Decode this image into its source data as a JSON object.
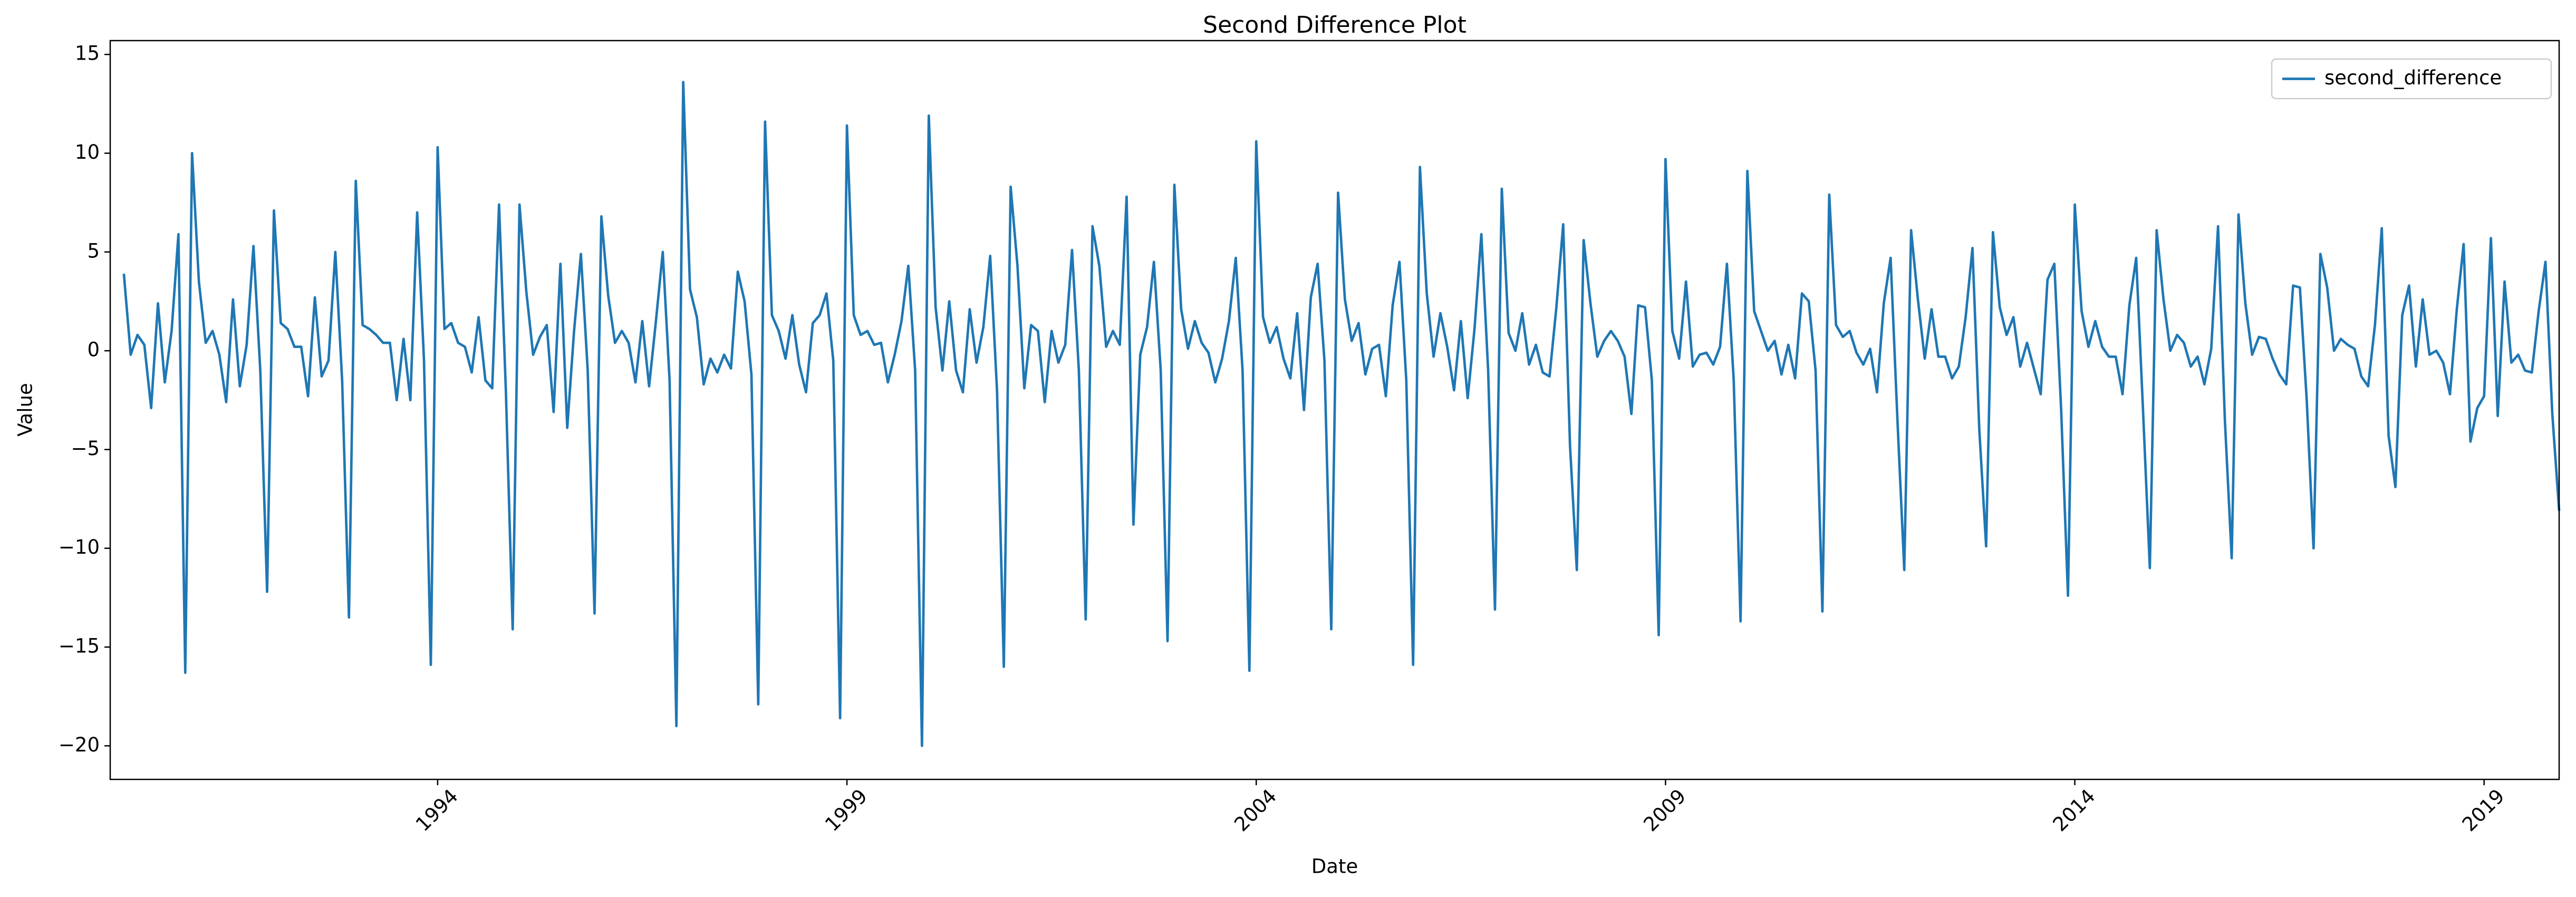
{
  "chart_data": {
    "type": "line",
    "title": "Second Difference Plot",
    "x_label": "Date",
    "y_label": "Value",
    "legend_position": "upper right",
    "grid": false,
    "xlim": [
      "1990-01",
      "2019-12"
    ],
    "xticks": [
      {
        "value": "1994-01",
        "label": "1994"
      },
      {
        "value": "1999-01",
        "label": "1999"
      },
      {
        "value": "2004-01",
        "label": "2004"
      },
      {
        "value": "2009-01",
        "label": "2009"
      },
      {
        "value": "2014-01",
        "label": "2014"
      },
      {
        "value": "2019-01",
        "label": "2019"
      }
    ],
    "ylim": [
      -21.7,
      15.7
    ],
    "yticks": [
      {
        "value": -20,
        "label": "−20"
      },
      {
        "value": -15,
        "label": "−15"
      },
      {
        "value": -10,
        "label": "−10"
      },
      {
        "value": -5,
        "label": "−5"
      },
      0,
      5,
      10,
      15
    ],
    "x": [
      "1990-01",
      "1990-02",
      "1990-03",
      "1990-04",
      "1990-05",
      "1990-06",
      "1990-07",
      "1990-08",
      "1990-09",
      "1990-10",
      "1990-11",
      "1990-12",
      "1991-01",
      "1991-02",
      "1991-03",
      "1991-04",
      "1991-05",
      "1991-06",
      "1991-07",
      "1991-08",
      "1991-09",
      "1991-10",
      "1991-11",
      "1991-12",
      "1992-01",
      "1992-02",
      "1992-03",
      "1992-04",
      "1992-05",
      "1992-06",
      "1992-07",
      "1992-08",
      "1992-09",
      "1992-10",
      "1992-11",
      "1992-12",
      "1993-01",
      "1993-02",
      "1993-03",
      "1993-04",
      "1993-05",
      "1993-06",
      "1993-07",
      "1993-08",
      "1993-09",
      "1993-10",
      "1993-11",
      "1993-12",
      "1994-01",
      "1994-02",
      "1994-03",
      "1994-04",
      "1994-05",
      "1994-06",
      "1994-07",
      "1994-08",
      "1994-09",
      "1994-10",
      "1994-11",
      "1994-12",
      "1995-01",
      "1995-02",
      "1995-03",
      "1995-04",
      "1995-05",
      "1995-06",
      "1995-07",
      "1995-08",
      "1995-09",
      "1995-10",
      "1995-11",
      "1995-12",
      "1996-01",
      "1996-02",
      "1996-03",
      "1996-04",
      "1996-05",
      "1996-06",
      "1996-07",
      "1996-08",
      "1996-09",
      "1996-10",
      "1996-11",
      "1996-12",
      "1997-01",
      "1997-02",
      "1997-03",
      "1997-04",
      "1997-05",
      "1997-06",
      "1997-07",
      "1997-08",
      "1997-09",
      "1997-10",
      "1997-11",
      "1997-12",
      "1998-01",
      "1998-02",
      "1998-03",
      "1998-04",
      "1998-05",
      "1998-06",
      "1998-07",
      "1998-08",
      "1998-09",
      "1998-10",
      "1998-11",
      "1998-12",
      "1999-01",
      "1999-02",
      "1999-03",
      "1999-04",
      "1999-05",
      "1999-06",
      "1999-07",
      "1999-08",
      "1999-09",
      "1999-10",
      "1999-11",
      "1999-12",
      "2000-01",
      "2000-02",
      "2000-03",
      "2000-04",
      "2000-05",
      "2000-06",
      "2000-07",
      "2000-08",
      "2000-09",
      "2000-10",
      "2000-11",
      "2000-12",
      "2001-01",
      "2001-02",
      "2001-03",
      "2001-04",
      "2001-05",
      "2001-06",
      "2001-07",
      "2001-08",
      "2001-09",
      "2001-10",
      "2001-11",
      "2001-12",
      "2002-01",
      "2002-02",
      "2002-03",
      "2002-04",
      "2002-05",
      "2002-06",
      "2002-07",
      "2002-08",
      "2002-09",
      "2002-10",
      "2002-11",
      "2002-12",
      "2003-01",
      "2003-02",
      "2003-03",
      "2003-04",
      "2003-05",
      "2003-06",
      "2003-07",
      "2003-08",
      "2003-09",
      "2003-10",
      "2003-11",
      "2003-12",
      "2004-01",
      "2004-02",
      "2004-03",
      "2004-04",
      "2004-05",
      "2004-06",
      "2004-07",
      "2004-08",
      "2004-09",
      "2004-10",
      "2004-11",
      "2004-12",
      "2005-01",
      "2005-02",
      "2005-03",
      "2005-04",
      "2005-05",
      "2005-06",
      "2005-07",
      "2005-08",
      "2005-09",
      "2005-10",
      "2005-11",
      "2005-12",
      "2006-01",
      "2006-02",
      "2006-03",
      "2006-04",
      "2006-05",
      "2006-06",
      "2006-07",
      "2006-08",
      "2006-09",
      "2006-10",
      "2006-11",
      "2006-12",
      "2007-01",
      "2007-02",
      "2007-03",
      "2007-04",
      "2007-05",
      "2007-06",
      "2007-07",
      "2007-08",
      "2007-09",
      "2007-10",
      "2007-11",
      "2007-12",
      "2008-01",
      "2008-02",
      "2008-03",
      "2008-04",
      "2008-05",
      "2008-06",
      "2008-07",
      "2008-08",
      "2008-09",
      "2008-10",
      "2008-11",
      "2008-12",
      "2009-01",
      "2009-02",
      "2009-03",
      "2009-04",
      "2009-05",
      "2009-06",
      "2009-07",
      "2009-08",
      "2009-09",
      "2009-10",
      "2009-11",
      "2009-12",
      "2010-01",
      "2010-02",
      "2010-03",
      "2010-04",
      "2010-05",
      "2010-06",
      "2010-07",
      "2010-08",
      "2010-09",
      "2010-10",
      "2010-11",
      "2010-12",
      "2011-01",
      "2011-02",
      "2011-03",
      "2011-04",
      "2011-05",
      "2011-06",
      "2011-07",
      "2011-08",
      "2011-09",
      "2011-10",
      "2011-11",
      "2011-12",
      "2012-01",
      "2012-02",
      "2012-03",
      "2012-04",
      "2012-05",
      "2012-06",
      "2012-07",
      "2012-08",
      "2012-09",
      "2012-10",
      "2012-11",
      "2012-12",
      "2013-01",
      "2013-02",
      "2013-03",
      "2013-04",
      "2013-05",
      "2013-06",
      "2013-07",
      "2013-08",
      "2013-09",
      "2013-10",
      "2013-11",
      "2013-12",
      "2014-01",
      "2014-02",
      "2014-03",
      "2014-04",
      "2014-05",
      "2014-06",
      "2014-07",
      "2014-08",
      "2014-09",
      "2014-10",
      "2014-11",
      "2014-12",
      "2015-01",
      "2015-02",
      "2015-03",
      "2015-04",
      "2015-05",
      "2015-06",
      "2015-07",
      "2015-08",
      "2015-09",
      "2015-10",
      "2015-11",
      "2015-12",
      "2016-01",
      "2016-02",
      "2016-03",
      "2016-04",
      "2016-05",
      "2016-06",
      "2016-07",
      "2016-08",
      "2016-09",
      "2016-10",
      "2016-11",
      "2016-12",
      "2017-01",
      "2017-02",
      "2017-03",
      "2017-04",
      "2017-05",
      "2017-06",
      "2017-07",
      "2017-08",
      "2017-09",
      "2017-10",
      "2017-11",
      "2017-12",
      "2018-01",
      "2018-02",
      "2018-03",
      "2018-04",
      "2018-05",
      "2018-06",
      "2018-07",
      "2018-08",
      "2018-09",
      "2018-10",
      "2018-11",
      "2018-12",
      "2019-01",
      "2019-02",
      "2019-03",
      "2019-04",
      "2019-05",
      "2019-06",
      "2019-07",
      "2019-08",
      "2019-09",
      "2019-10",
      "2019-11",
      "2019-12"
    ],
    "series": [
      {
        "name": "second_difference",
        "color": "#1f77b4",
        "values": [
          null,
          null,
          3.9,
          -0.2,
          0.8,
          0.3,
          -2.9,
          2.4,
          -1.6,
          1.0,
          5.9,
          -16.3,
          10.0,
          3.5,
          0.4,
          1.0,
          -0.2,
          -2.6,
          2.6,
          -1.8,
          0.3,
          5.3,
          -1.0,
          -12.2,
          7.1,
          1.4,
          1.1,
          0.2,
          0.2,
          -2.3,
          2.7,
          -1.3,
          -0.5,
          5.0,
          -1.5,
          -13.5,
          8.6,
          1.3,
          1.1,
          0.8,
          0.4,
          0.4,
          -2.5,
          0.6,
          -2.5,
          7.0,
          -0.5,
          -15.9,
          10.3,
          1.1,
          1.4,
          0.4,
          0.2,
          -1.1,
          1.7,
          -1.5,
          -1.9,
          7.4,
          -2.0,
          -14.1,
          7.4,
          3.0,
          -0.2,
          0.7,
          1.3,
          -3.1,
          4.4,
          -3.9,
          1.0,
          4.9,
          -1.0,
          -13.3,
          6.8,
          2.8,
          0.4,
          1.0,
          0.4,
          -1.6,
          1.5,
          -1.8,
          1.5,
          5.0,
          -1.5,
          -19.0,
          13.6,
          3.1,
          1.7,
          -1.7,
          -0.4,
          -1.1,
          -0.2,
          -0.9,
          4.0,
          2.5,
          -1.2,
          -17.9,
          11.6,
          1.8,
          1.0,
          -0.4,
          1.8,
          -0.7,
          -2.1,
          1.4,
          1.8,
          2.9,
          -0.5,
          -18.6,
          11.4,
          1.8,
          0.8,
          1.0,
          0.3,
          0.4,
          -1.6,
          -0.2,
          1.5,
          4.3,
          -1.0,
          -20.0,
          11.9,
          2.2,
          -1.0,
          2.5,
          -1.0,
          -2.1,
          2.1,
          -0.6,
          1.2,
          4.8,
          -2.0,
          -16.0,
          8.3,
          4.3,
          -1.9,
          1.3,
          1.0,
          -2.6,
          1.0,
          -0.6,
          0.3,
          5.1,
          -1.0,
          -13.6,
          6.3,
          4.3,
          0.2,
          1.0,
          0.3,
          7.8,
          -8.8,
          -0.2,
          1.2,
          4.5,
          -1.0,
          -14.7,
          8.4,
          2.1,
          0.1,
          1.5,
          0.4,
          -0.1,
          -1.6,
          -0.4,
          1.5,
          4.7,
          -1.0,
          -16.2,
          10.6,
          1.7,
          0.4,
          1.2,
          -0.4,
          -1.4,
          1.9,
          -3.0,
          2.7,
          4.4,
          -0.5,
          -14.1,
          8.0,
          2.6,
          0.5,
          1.4,
          -1.2,
          0.1,
          0.3,
          -2.3,
          2.3,
          4.5,
          -1.5,
          -15.9,
          9.3,
          2.9,
          -0.3,
          1.9,
          0.2,
          -2.0,
          1.5,
          -2.4,
          1.1,
          5.9,
          -1.0,
          -13.1,
          8.2,
          0.9,
          0.0,
          1.9,
          -0.7,
          0.3,
          -1.1,
          -1.3,
          2.2,
          6.4,
          -4.8,
          -11.1,
          5.6,
          2.4,
          -0.3,
          0.5,
          1.0,
          0.5,
          -0.3,
          -3.2,
          2.3,
          2.2,
          -1.5,
          -14.4,
          9.7,
          1.0,
          -0.4,
          3.5,
          -0.8,
          -0.2,
          -0.1,
          -0.7,
          0.2,
          4.4,
          -1.5,
          -13.7,
          9.1,
          2.0,
          1.0,
          0.0,
          0.5,
          -1.2,
          0.3,
          -1.4,
          2.9,
          2.5,
          -1.0,
          -13.2,
          7.9,
          1.3,
          0.7,
          1.0,
          -0.1,
          -0.7,
          0.1,
          -2.1,
          2.4,
          4.7,
          -3.5,
          -11.1,
          6.1,
          2.6,
          -0.4,
          2.1,
          -0.3,
          -0.3,
          -1.4,
          -0.8,
          1.7,
          5.2,
          -4.0,
          -9.9,
          6.0,
          2.2,
          0.8,
          1.7,
          -0.8,
          0.4,
          -0.9,
          -2.2,
          3.6,
          4.4,
          -3.0,
          -12.4,
          7.4,
          2.0,
          0.2,
          1.5,
          0.2,
          -0.3,
          -0.3,
          -2.2,
          2.3,
          4.7,
          -3.0,
          -11.0,
          6.1,
          2.6,
          0.0,
          0.8,
          0.4,
          -0.8,
          -0.3,
          -1.7,
          0.1,
          6.3,
          -3.5,
          -10.5,
          6.9,
          2.4,
          -0.2,
          0.7,
          0.6,
          -0.4,
          -1.2,
          -1.7,
          3.3,
          3.2,
          -2.5,
          -10.0,
          4.9,
          3.2,
          0.0,
          0.6,
          0.3,
          0.1,
          -1.3,
          -1.8,
          1.3,
          6.2,
          -4.3,
          -6.9,
          1.8,
          3.3,
          -0.8,
          2.6,
          -0.2,
          0.0,
          -0.6,
          -2.2,
          2.1,
          5.4,
          -4.6,
          -2.9,
          -2.3,
          5.7,
          -3.3,
          3.5,
          -0.6,
          -0.2,
          -1.0,
          -1.1,
          2.0,
          4.5,
          -3.2,
          -8.1
        ]
      }
    ]
  }
}
